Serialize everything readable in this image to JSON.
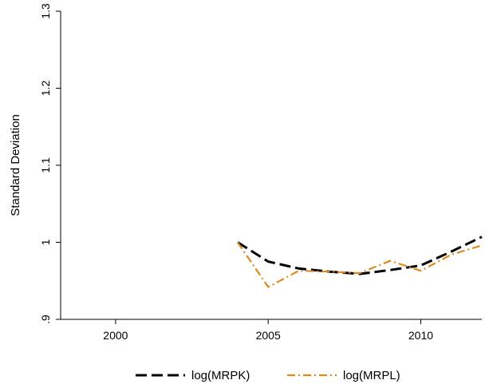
{
  "chart_data": {
    "type": "line",
    "title": "",
    "xlabel": "",
    "ylabel": "Standard Deviation",
    "xlim": [
      1998.2,
      2012
    ],
    "ylim": [
      0.9,
      1.3
    ],
    "x_ticks": [
      2000,
      2005,
      2010
    ],
    "x_tick_labels": [
      "2000",
      "2005",
      "2010"
    ],
    "y_ticks": [
      0.9,
      1.0,
      1.1,
      1.2,
      1.3
    ],
    "y_tick_labels": [
      ".9",
      "1",
      "1.1",
      "1.2",
      "1.3"
    ],
    "grid": false,
    "legend_position": "bottom",
    "series": [
      {
        "name": "log(MRPK)",
        "color": "#000000",
        "style": "long-dash",
        "x": [
          2004,
          2005,
          2006,
          2007,
          2008,
          2009,
          2010,
          2011,
          2012
        ],
        "y": [
          1.0,
          0.975,
          0.966,
          0.962,
          0.959,
          0.964,
          0.97,
          0.988,
          1.007
        ]
      },
      {
        "name": "log(MRPL)",
        "color": "#e08a1e",
        "style": "dash-dot",
        "x": [
          2004,
          2005,
          2006,
          2007,
          2008,
          2009,
          2010,
          2011,
          2012
        ],
        "y": [
          1.0,
          0.942,
          0.963,
          0.962,
          0.96,
          0.976,
          0.963,
          0.984,
          0.996
        ]
      }
    ]
  }
}
